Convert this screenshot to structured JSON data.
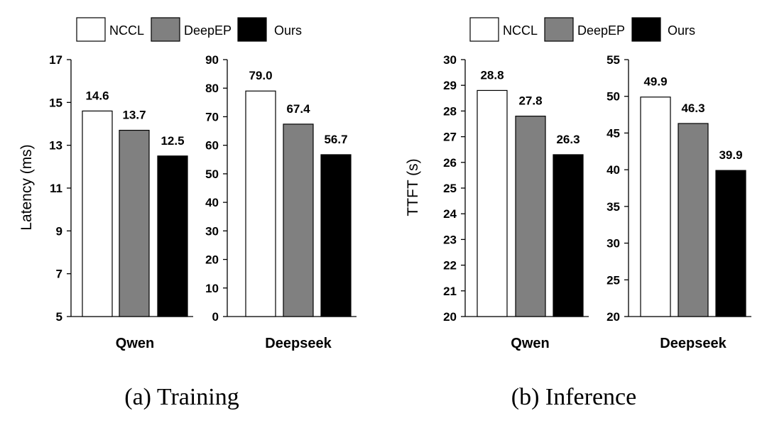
{
  "legend": [
    {
      "name": "NCCL",
      "color": "#ffffff"
    },
    {
      "name": "DeepEP",
      "color": "#808080"
    },
    {
      "name": "Ours",
      "color": "#000000"
    }
  ],
  "chart_data": [
    {
      "type": "bar",
      "group": "(a) Training",
      "categories": [
        "Qwen"
      ],
      "series": [
        {
          "name": "NCCL",
          "values": [
            14.6
          ]
        },
        {
          "name": "DeepEP",
          "values": [
            13.7
          ]
        },
        {
          "name": "Ours",
          "values": [
            12.5
          ]
        }
      ],
      "value_labels": [
        "14.6",
        "13.7",
        "12.5"
      ],
      "ylabel": "Latency (ms)",
      "ylim": [
        5,
        17
      ],
      "yticks": [
        5,
        7,
        9,
        11,
        13,
        15,
        17
      ]
    },
    {
      "type": "bar",
      "group": "(a) Training",
      "categories": [
        "Deepseek"
      ],
      "series": [
        {
          "name": "NCCL",
          "values": [
            79.0
          ]
        },
        {
          "name": "DeepEP",
          "values": [
            67.4
          ]
        },
        {
          "name": "Ours",
          "values": [
            56.7
          ]
        }
      ],
      "value_labels": [
        "79.0",
        "67.4",
        "56.7"
      ],
      "ylabel": "",
      "ylim": [
        0,
        90
      ],
      "yticks": [
        0,
        10,
        20,
        30,
        40,
        50,
        60,
        70,
        80,
        90
      ]
    },
    {
      "type": "bar",
      "group": "(b) Inference",
      "categories": [
        "Qwen"
      ],
      "series": [
        {
          "name": "NCCL",
          "values": [
            28.8
          ]
        },
        {
          "name": "DeepEP",
          "values": [
            27.8
          ]
        },
        {
          "name": "Ours",
          "values": [
            26.3
          ]
        }
      ],
      "value_labels": [
        "28.8",
        "27.8",
        "26.3"
      ],
      "ylabel": "TTFT (s)",
      "ylim": [
        20,
        30
      ],
      "yticks": [
        20,
        21,
        22,
        23,
        24,
        25,
        26,
        27,
        28,
        29,
        30
      ]
    },
    {
      "type": "bar",
      "group": "(b) Inference",
      "categories": [
        "Deepseek"
      ],
      "series": [
        {
          "name": "NCCL",
          "values": [
            49.9
          ]
        },
        {
          "name": "DeepEP",
          "values": [
            46.3
          ]
        },
        {
          "name": "Ours",
          "values": [
            39.9
          ]
        }
      ],
      "value_labels": [
        "49.9",
        "46.3",
        "39.9"
      ],
      "ylabel": "",
      "ylim": [
        20,
        55
      ],
      "yticks": [
        20,
        25,
        30,
        35,
        40,
        45,
        50,
        55
      ]
    }
  ],
  "captions": [
    "(a) Training",
    "(b) Inference"
  ]
}
